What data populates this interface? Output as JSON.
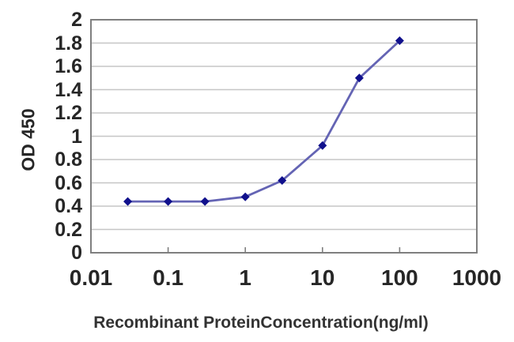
{
  "chart_data": {
    "type": "line",
    "title": "",
    "xlabel": "Recombinant ProteinConcentration(ng/ml)",
    "ylabel": "OD 450",
    "x_scale": "log",
    "xlim": [
      0.01,
      1000
    ],
    "ylim": [
      0,
      2
    ],
    "grid": "horizontal",
    "legend_position": "none",
    "x_ticks": [
      {
        "value": 0.01,
        "label": "0.01"
      },
      {
        "value": 0.1,
        "label": "0.1"
      },
      {
        "value": 1,
        "label": "1"
      },
      {
        "value": 10,
        "label": "10"
      },
      {
        "value": 100,
        "label": "100"
      },
      {
        "value": 1000,
        "label": "1000"
      }
    ],
    "y_ticks": [
      {
        "value": 0,
        "label": "0"
      },
      {
        "value": 0.2,
        "label": "0.2"
      },
      {
        "value": 0.4,
        "label": "0.4"
      },
      {
        "value": 0.6,
        "label": "0.6"
      },
      {
        "value": 0.8,
        "label": "0.8"
      },
      {
        "value": 1,
        "label": "1"
      },
      {
        "value": 1.2,
        "label": "1.2"
      },
      {
        "value": 1.4,
        "label": "1.4"
      },
      {
        "value": 1.6,
        "label": "1.6"
      },
      {
        "value": 1.8,
        "label": "1.8"
      },
      {
        "value": 2,
        "label": "2"
      }
    ],
    "series": [
      {
        "name": "OD 450",
        "marker": "diamond",
        "points": [
          {
            "x": 0.03,
            "y": 0.44
          },
          {
            "x": 0.1,
            "y": 0.44
          },
          {
            "x": 0.3,
            "y": 0.44
          },
          {
            "x": 1,
            "y": 0.48
          },
          {
            "x": 3,
            "y": 0.62
          },
          {
            "x": 10,
            "y": 0.92
          },
          {
            "x": 30,
            "y": 1.5
          },
          {
            "x": 100,
            "y": 1.82
          }
        ]
      }
    ],
    "colors": {
      "line": "#6464b4",
      "marker": "#10108c",
      "grid": "#c6c6c6",
      "frame": "#7f7f7f",
      "text": "#262626",
      "background": "#ffffff"
    }
  }
}
